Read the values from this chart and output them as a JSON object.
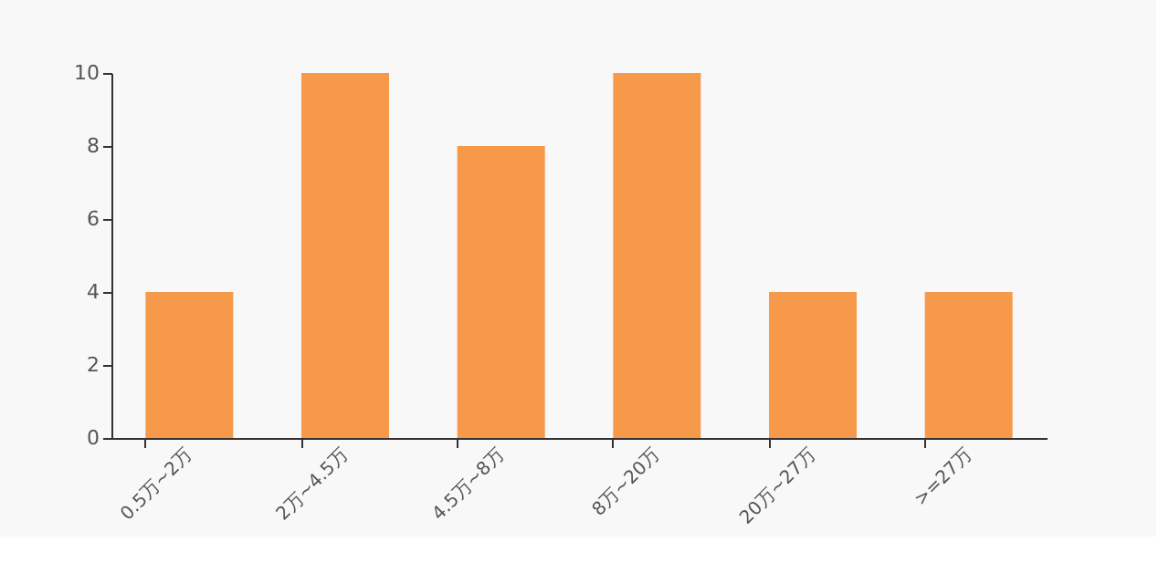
{
  "chart_data": {
    "type": "bar",
    "categories": [
      "0.5万~2万",
      "2万~4.5万",
      "4.5万~8万",
      "8万~20万",
      "20万~27万",
      ">=27万"
    ],
    "values": [
      4,
      10,
      8,
      10,
      4,
      4
    ],
    "color": "#f7994a",
    "ylim": [
      0,
      10
    ],
    "yticks": [
      0,
      2,
      4,
      6,
      8,
      10
    ],
    "grid": false
  }
}
